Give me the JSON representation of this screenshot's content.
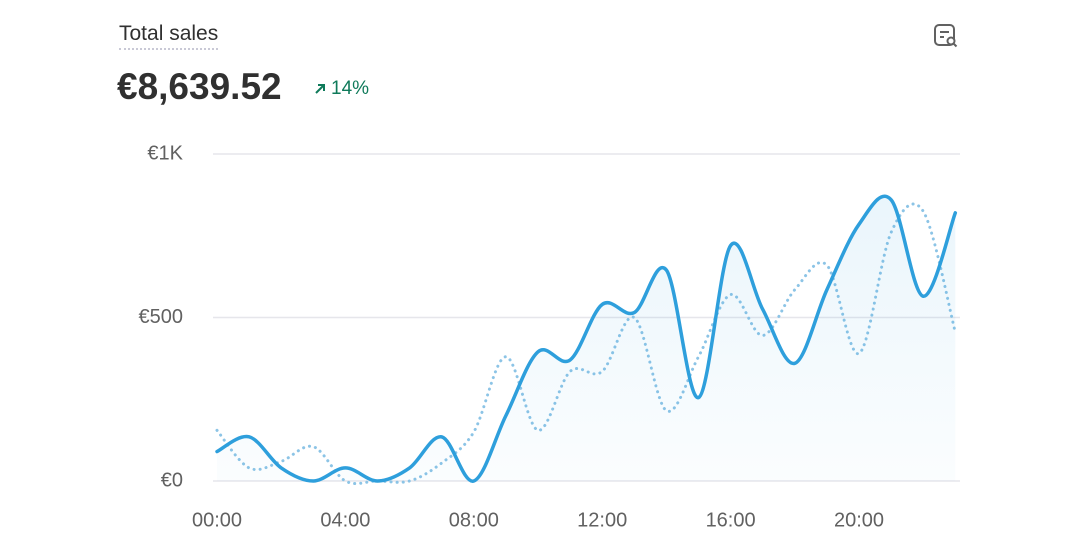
{
  "header": {
    "title": "Total sales",
    "value": "€8,639.52",
    "change": "14%"
  },
  "chart_data": {
    "type": "line",
    "categories": [
      "00:00",
      null,
      null,
      null,
      "04:00",
      null,
      null,
      null,
      "08:00",
      null,
      null,
      null,
      "12:00",
      null,
      null,
      null,
      "16:00",
      null,
      null,
      null,
      "20:00",
      null,
      null,
      null
    ],
    "series": [
      {
        "color": "#2e9fdc",
        "style": "solid",
        "values": [
          90,
          135,
          40,
          0,
          40,
          0,
          40,
          135,
          0,
          200,
          395,
          370,
          540,
          515,
          645,
          255,
          720,
          525,
          360,
          585,
          785,
          860,
          565,
          820
        ]
      },
      {
        "color": "#8cc4e6",
        "style": "dotted",
        "values": [
          155,
          40,
          60,
          105,
          0,
          0,
          0,
          55,
          150,
          380,
          155,
          335,
          335,
          500,
          215,
          380,
          570,
          445,
          585,
          660,
          390,
          760,
          825,
          455
        ]
      }
    ],
    "ylim": [
      0,
      1000
    ],
    "yticks": [
      {
        "value": 0,
        "label": "€0"
      },
      {
        "value": 500,
        "label": "€500"
      },
      {
        "value": 1000,
        "label": "€1K"
      }
    ],
    "grid": true
  }
}
